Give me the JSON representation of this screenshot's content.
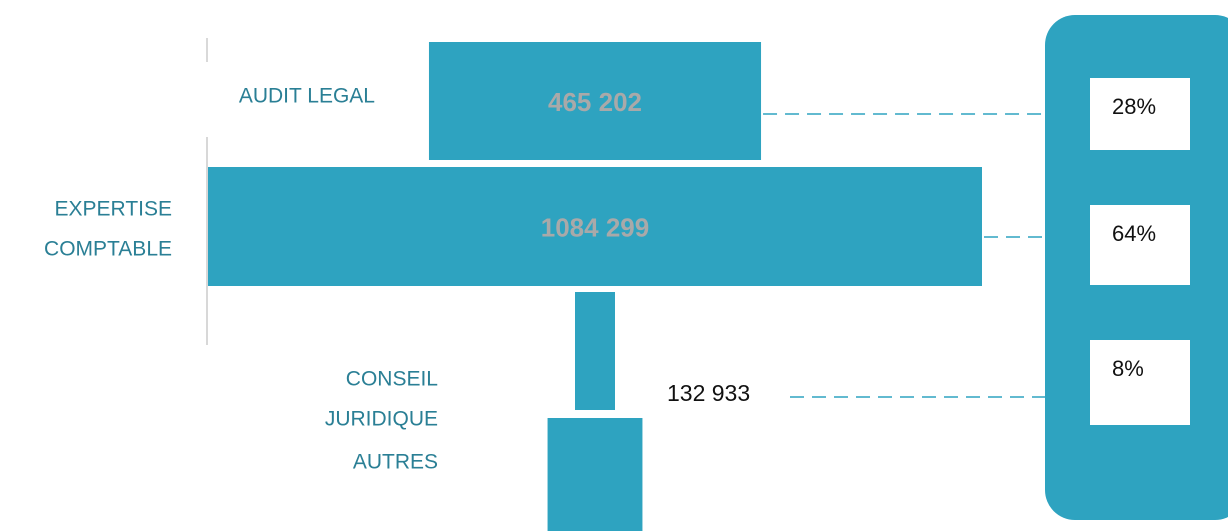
{
  "chart_data": {
    "type": "funnel",
    "categories": [
      [
        "AUDIT LEGAL"
      ],
      [
        "EXPERTISE",
        "COMPTABLE"
      ],
      [
        "CONSEIL",
        "JURIDIQUE",
        "AUTRES"
      ]
    ],
    "values": [
      465202,
      1084299,
      132933
    ],
    "value_labels": [
      "465 202",
      "1084 299",
      "132 933"
    ],
    "shares": [
      28,
      64,
      8
    ],
    "share_labels": [
      "28%",
      "64%",
      "8%"
    ],
    "color": "#2ea3c0"
  }
}
